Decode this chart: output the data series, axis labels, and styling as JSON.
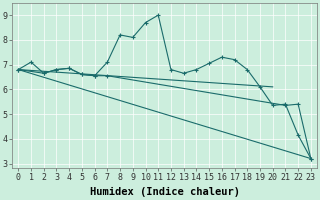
{
  "xlabel": "Humidex (Indice chaleur)",
  "ylabel": "",
  "xlim": [
    -0.5,
    23.5
  ],
  "ylim": [
    2.8,
    9.5
  ],
  "bg_color": "#cceedd",
  "line_color": "#1a6b6b",
  "grid_color": "#ffffff",
  "line1_x": [
    0,
    1,
    2,
    3,
    4,
    5,
    6,
    7,
    8,
    9,
    10,
    11,
    12,
    13,
    14,
    15,
    16,
    17,
    18,
    19,
    20,
    21,
    22,
    23
  ],
  "line1_y": [
    6.8,
    7.1,
    6.65,
    6.8,
    6.85,
    6.6,
    6.55,
    7.1,
    8.2,
    8.1,
    8.7,
    9.0,
    6.8,
    6.65,
    6.8,
    7.05,
    7.3,
    7.2,
    6.8,
    6.1,
    5.35,
    5.4,
    4.15,
    3.2
  ],
  "line2_x": [
    0,
    2,
    3,
    4,
    5,
    6,
    7,
    21,
    22,
    23
  ],
  "line2_y": [
    6.8,
    6.65,
    6.8,
    6.85,
    6.6,
    6.55,
    6.55,
    5.35,
    5.4,
    3.2
  ],
  "line3_x": [
    0,
    20
  ],
  "line3_y": [
    6.8,
    6.1
  ],
  "line4_x": [
    0,
    23
  ],
  "line4_y": [
    6.8,
    3.2
  ],
  "xtick_labels": [
    "0",
    "1",
    "2",
    "3",
    "4",
    "5",
    "6",
    "7",
    "8",
    "9",
    "10",
    "11",
    "12",
    "13",
    "14",
    "15",
    "16",
    "17",
    "18",
    "19",
    "20",
    "21",
    "22",
    "23"
  ],
  "ytick_vals": [
    3,
    4,
    5,
    6,
    7,
    8,
    9
  ],
  "axis_fontsize": 7,
  "tick_fontsize": 6,
  "xlabel_fontsize": 7.5
}
